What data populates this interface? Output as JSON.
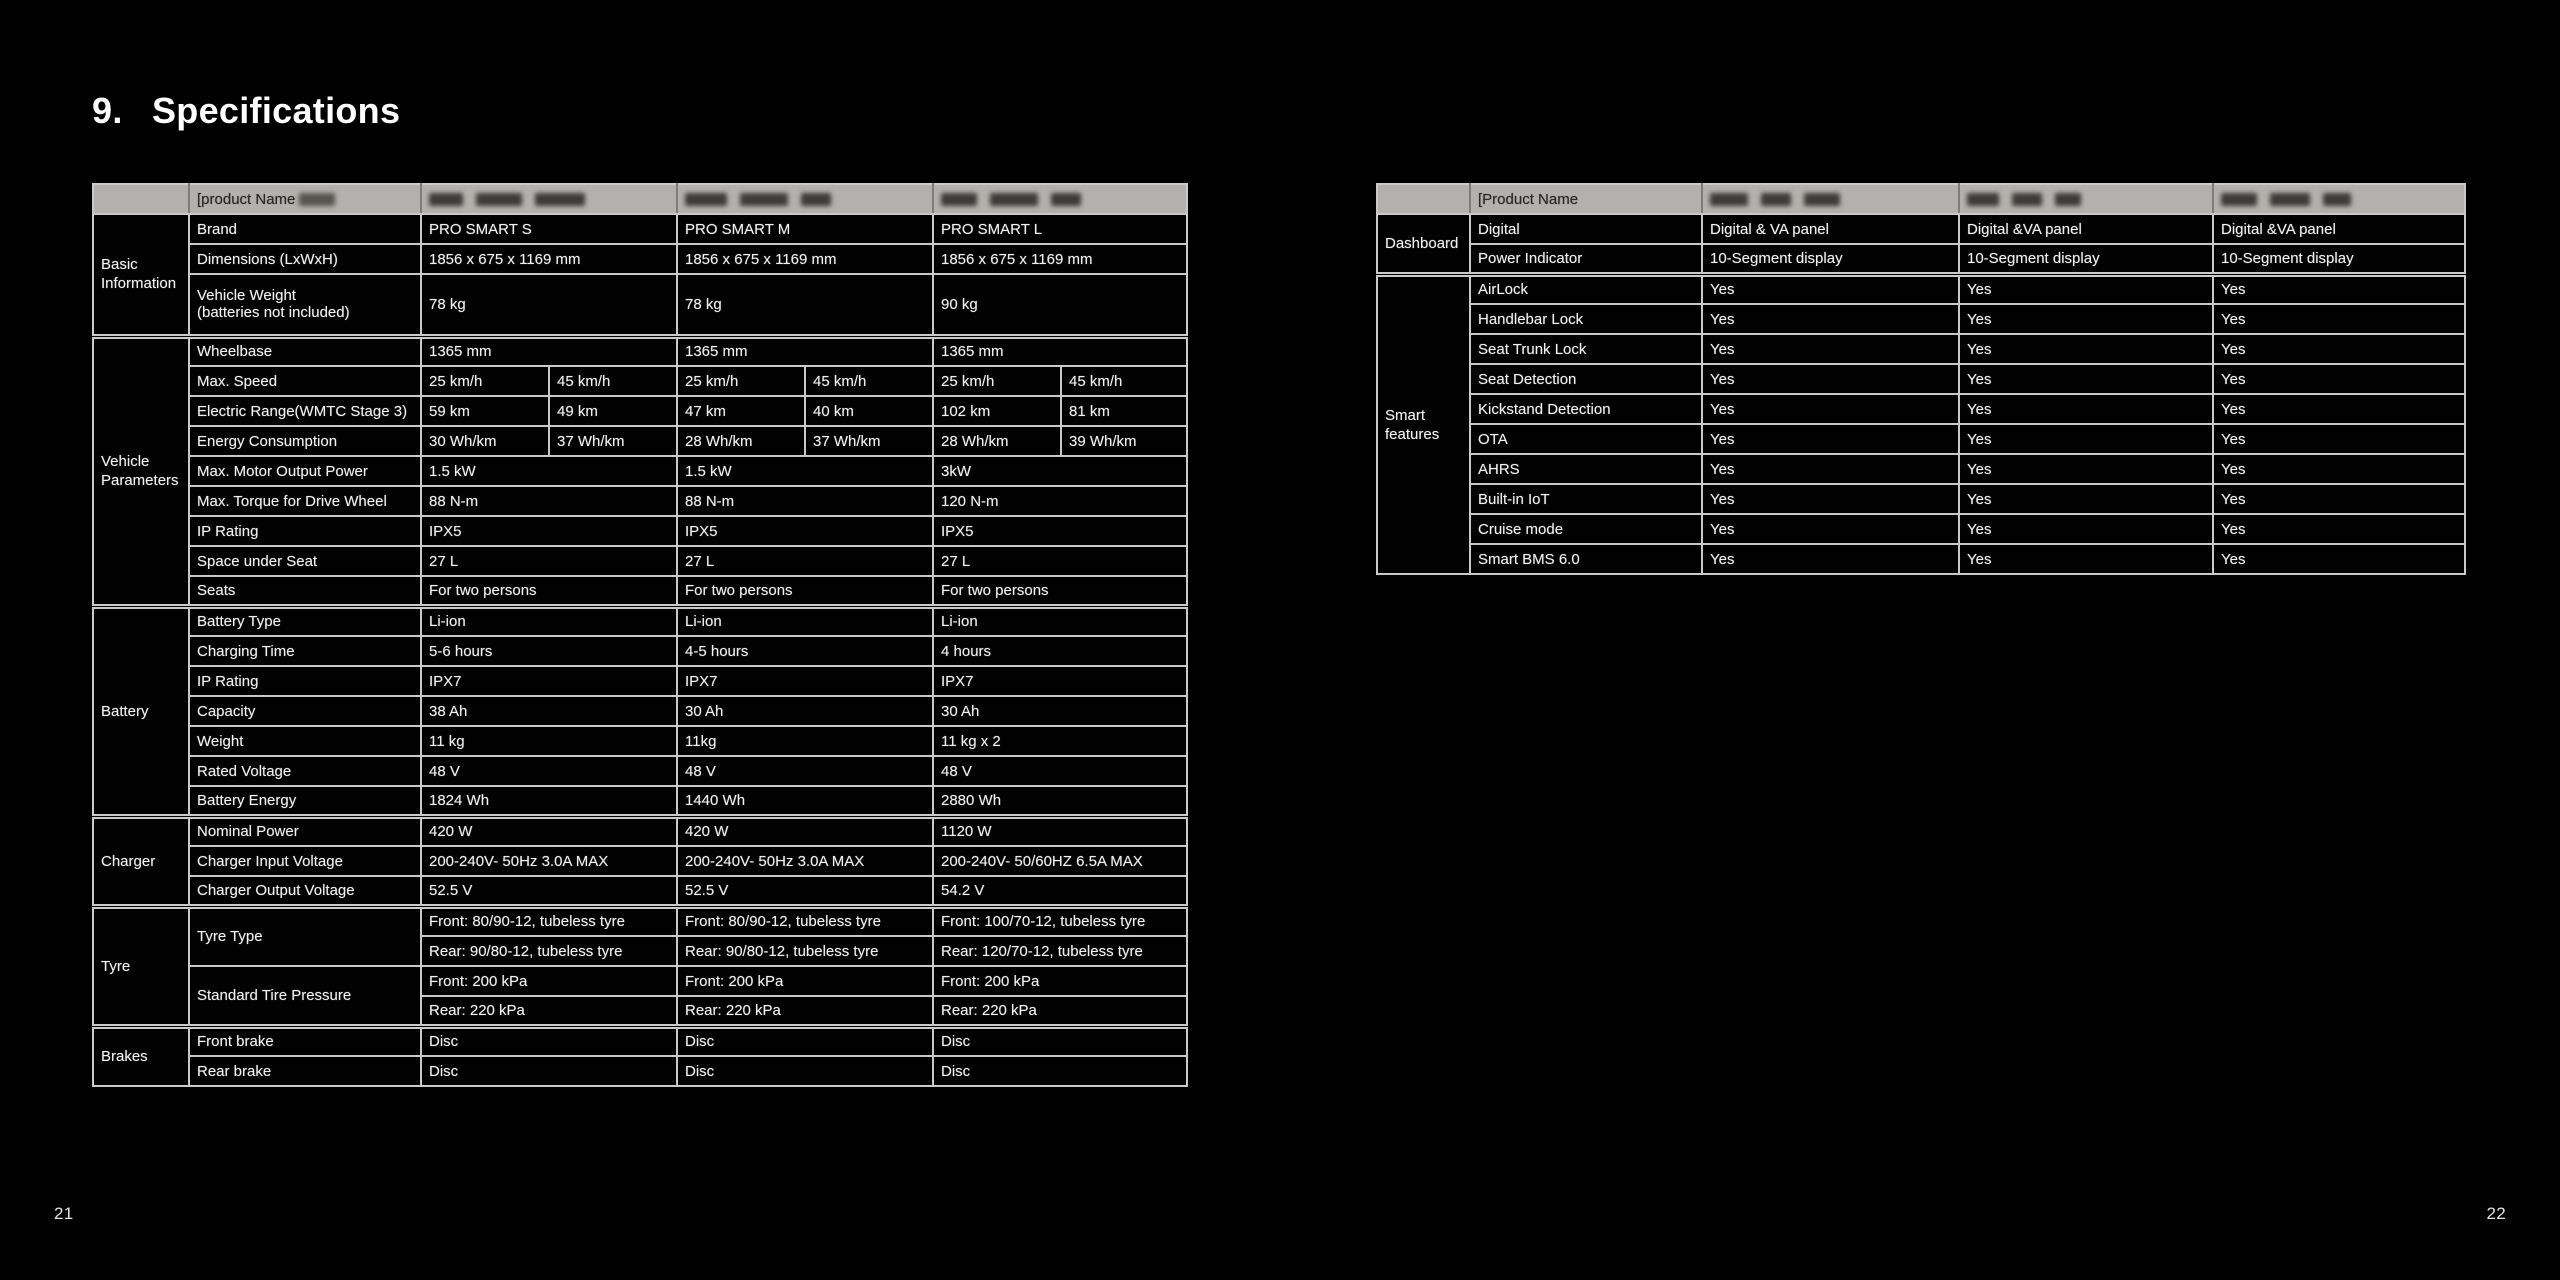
{
  "page": {
    "title_number": "9.",
    "title": "Specifications",
    "left_page_number": "21",
    "right_page_number": "22"
  },
  "colors": {
    "background": "#000000",
    "table_border": "#c9c9c9",
    "header_background": "#b3b1ad",
    "header_text": "#262624",
    "cell_background": "#020202",
    "cell_text": "#f1f1f1"
  },
  "left_table": {
    "header": {
      "label": "[product Name",
      "products": [
        "[redacted]",
        "[redacted]",
        "[redacted]"
      ]
    },
    "sections": [
      {
        "label": "Basic Information",
        "rows": [
          {
            "param": "Brand",
            "values": [
              "PRO SMART S",
              "PRO SMART M",
              "PRO SMART L"
            ]
          },
          {
            "param": "Dimensions (LxWxH)",
            "values": [
              "1856 x 675 x 1169 mm",
              "1856 x 675 x 1169 mm",
              "1856 x 675 x 1169 mm"
            ]
          },
          {
            "param": "Vehicle Weight (batteries not included)",
            "param_lines": [
              "Vehicle Weight",
              "(batteries not included)"
            ],
            "tall": true,
            "values": [
              "78 kg",
              "78 kg",
              "90 kg"
            ]
          }
        ]
      },
      {
        "label": "Vehicle Parameters",
        "rows": [
          {
            "param": "Wheelbase",
            "values": [
              "1365 mm",
              "1365 mm",
              "1365 mm"
            ]
          },
          {
            "param": "Max. Speed",
            "split": [
              [
                "25 km/h",
                "45 km/h"
              ],
              [
                "25 km/h",
                "45 km/h"
              ],
              [
                "25 km/h",
                "45 km/h"
              ]
            ]
          },
          {
            "param": "Electric Range(WMTC Stage 3)",
            "split": [
              [
                "59 km",
                "49 km"
              ],
              [
                "47 km",
                "40 km"
              ],
              [
                "102 km",
                "81 km"
              ]
            ]
          },
          {
            "param": "Energy Consumption",
            "split": [
              [
                "30 Wh/km",
                "37 Wh/km"
              ],
              [
                "28 Wh/km",
                "37 Wh/km"
              ],
              [
                "28 Wh/km",
                "39 Wh/km"
              ]
            ]
          },
          {
            "param": "Max. Motor Output Power",
            "values": [
              "1.5 kW",
              "1.5 kW",
              "3kW"
            ]
          },
          {
            "param": "Max. Torque for Drive Wheel",
            "values": [
              "88 N-m",
              "88 N-m",
              "120 N-m"
            ]
          },
          {
            "param": "IP Rating",
            "values": [
              "IPX5",
              "IPX5",
              "IPX5"
            ]
          },
          {
            "param": "Space under Seat",
            "values": [
              "27 L",
              "27 L",
              "27 L"
            ]
          },
          {
            "param": "Seats",
            "values": [
              "For two persons",
              "For two persons",
              "For two persons"
            ]
          }
        ]
      },
      {
        "label": "Battery",
        "rows": [
          {
            "param": "Battery Type",
            "values": [
              "Li-ion",
              "Li-ion",
              "Li-ion"
            ]
          },
          {
            "param": "Charging Time",
            "values": [
              "5-6 hours",
              "4-5 hours",
              "4 hours"
            ]
          },
          {
            "param": "IP Rating",
            "values": [
              "IPX7",
              "IPX7",
              "IPX7"
            ]
          },
          {
            "param": "Capacity",
            "values": [
              "38 Ah",
              "30 Ah",
              "30 Ah"
            ]
          },
          {
            "param": "Weight",
            "values": [
              "11 kg",
              "11kg",
              "11 kg x 2"
            ]
          },
          {
            "param": "Rated Voltage",
            "values": [
              "48 V",
              "48 V",
              "48 V"
            ]
          },
          {
            "param": "Battery Energy",
            "values": [
              "1824 Wh",
              "1440 Wh",
              "2880 Wh"
            ]
          }
        ]
      },
      {
        "label": "Charger",
        "rows": [
          {
            "param": "Nominal Power",
            "values": [
              "420 W",
              "420 W",
              "1120 W"
            ]
          },
          {
            "param": "Charger Input Voltage",
            "values": [
              "200-240V- 50Hz 3.0A MAX",
              "200-240V- 50Hz 3.0A MAX",
              "200-240V- 50/60HZ 6.5A MAX"
            ]
          },
          {
            "param": "Charger Output Voltage",
            "values": [
              "52.5 V",
              "52.5 V",
              "54.2 V"
            ]
          }
        ]
      },
      {
        "label": "Tyre",
        "rows": [
          {
            "param": "Tyre Type",
            "param_rowspan": 2,
            "values": [
              "Front: 80/90-12, tubeless tyre",
              "Front: 80/90-12, tubeless tyre",
              "Front: 100/70-12, tubeless tyre"
            ]
          },
          {
            "param": null,
            "values": [
              "Rear: 90/80-12, tubeless tyre",
              "Rear: 90/80-12, tubeless tyre",
              "Rear: 120/70-12, tubeless tyre"
            ]
          },
          {
            "param": "Standard Tire Pressure",
            "param_rowspan": 2,
            "values": [
              "Front: 200 kPa",
              "Front: 200 kPa",
              "Front: 200 kPa"
            ]
          },
          {
            "param": null,
            "values": [
              "Rear: 220 kPa",
              "Rear: 220 kPa",
              "Rear: 220 kPa"
            ]
          }
        ]
      },
      {
        "label": "Brakes",
        "rows": [
          {
            "param": "Front brake",
            "values": [
              "Disc",
              "Disc",
              "Disc"
            ]
          },
          {
            "param": "Rear brake",
            "values": [
              "Disc",
              "Disc",
              "Disc"
            ]
          }
        ]
      }
    ]
  },
  "right_table": {
    "header": {
      "label": "[Product Name",
      "products": [
        "[redacted]",
        "[redacted]",
        "[redacted]"
      ]
    },
    "sections": [
      {
        "label": "Dashboard",
        "rows": [
          {
            "param": "Digital",
            "values": [
              "Digital & VA panel",
              "Digital &VA panel",
              "Digital &VA panel"
            ]
          },
          {
            "param": "Power Indicator",
            "values": [
              "10-Segment display",
              "10-Segment display",
              "10-Segment display"
            ]
          }
        ]
      },
      {
        "label": "Smart features",
        "rows": [
          {
            "param": "AirLock",
            "values": [
              "Yes",
              "Yes",
              "Yes"
            ]
          },
          {
            "param": "Handlebar Lock",
            "values": [
              "Yes",
              "Yes",
              "Yes"
            ]
          },
          {
            "param": "Seat Trunk Lock",
            "values": [
              "Yes",
              "Yes",
              "Yes"
            ]
          },
          {
            "param": "Seat Detection",
            "values": [
              "Yes",
              "Yes",
              "Yes"
            ]
          },
          {
            "param": "Kickstand Detection",
            "values": [
              "Yes",
              "Yes",
              "Yes"
            ]
          },
          {
            "param": "OTA",
            "values": [
              "Yes",
              "Yes",
              "Yes"
            ]
          },
          {
            "param": "AHRS",
            "values": [
              "Yes",
              "Yes",
              "Yes"
            ]
          },
          {
            "param": "Built-in IoT",
            "values": [
              "Yes",
              "Yes",
              "Yes"
            ]
          },
          {
            "param": "Cruise mode",
            "values": [
              "Yes",
              "Yes",
              "Yes"
            ]
          },
          {
            "param": "Smart BMS 6.0",
            "values": [
              "Yes",
              "Yes",
              "Yes"
            ]
          }
        ]
      }
    ]
  }
}
